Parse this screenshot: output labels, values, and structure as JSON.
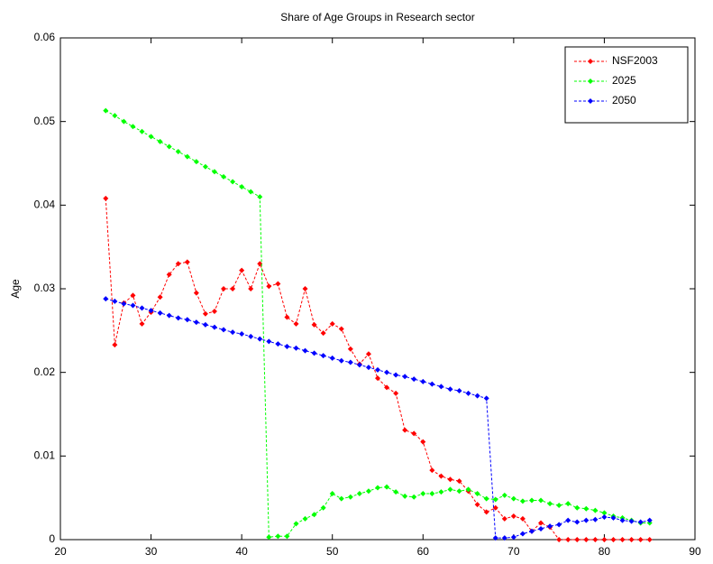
{
  "chart_data": {
    "type": "line",
    "title": "Share of Age Groups in Research sector",
    "ylabel": "Age",
    "x": [
      25,
      26,
      27,
      28,
      29,
      30,
      31,
      32,
      33,
      34,
      35,
      36,
      37,
      38,
      39,
      40,
      41,
      42,
      43,
      44,
      45,
      46,
      47,
      48,
      49,
      50,
      51,
      52,
      53,
      54,
      55,
      56,
      57,
      58,
      59,
      60,
      61,
      62,
      63,
      64,
      65,
      66,
      67,
      68,
      69,
      70,
      71,
      72,
      73,
      74,
      75,
      76,
      77,
      78,
      79,
      80,
      81,
      82,
      83,
      84,
      85
    ],
    "series": [
      {
        "name": "NSF2003",
        "color": "#ff0000",
        "values": [
          0.0408,
          0.0233,
          0.0283,
          0.0292,
          0.0258,
          0.0272,
          0.029,
          0.0317,
          0.033,
          0.0332,
          0.0295,
          0.027,
          0.0273,
          0.03,
          0.03,
          0.0322,
          0.03,
          0.033,
          0.0303,
          0.0306,
          0.0266,
          0.0258,
          0.03,
          0.0257,
          0.0247,
          0.0258,
          0.0252,
          0.0228,
          0.021,
          0.0222,
          0.0193,
          0.0182,
          0.0175,
          0.0131,
          0.0127,
          0.0117,
          0.0083,
          0.0076,
          0.0072,
          0.007,
          0.0058,
          0.0042,
          0.0033,
          0.0038,
          0.0025,
          0.0028,
          0.0025,
          0.001,
          0.002,
          0.0015,
          0,
          0,
          0,
          0,
          0,
          0,
          0,
          0,
          0,
          0,
          0
        ]
      },
      {
        "name": "2025",
        "color": "#00ff00",
        "values": [
          0.0513,
          0.0507,
          0.05,
          0.0494,
          0.0488,
          0.0482,
          0.0476,
          0.047,
          0.0464,
          0.0458,
          0.0452,
          0.0446,
          0.044,
          0.0434,
          0.0428,
          0.0422,
          0.0416,
          0.041,
          0.0003,
          0.0004,
          0.0004,
          0.0019,
          0.0025,
          0.003,
          0.0038,
          0.0055,
          0.0049,
          0.0051,
          0.0055,
          0.0058,
          0.0062,
          0.0063,
          0.0057,
          0.0052,
          0.0051,
          0.0055,
          0.0055,
          0.0057,
          0.006,
          0.0058,
          0.006,
          0.0055,
          0.0049,
          0.0048,
          0.0053,
          0.0049,
          0.0046,
          0.0047,
          0.0047,
          0.0043,
          0.0041,
          0.0043,
          0.0038,
          0.0037,
          0.0035,
          0.0032,
          0.0028,
          0.0026,
          0.0023,
          0.002,
          0.002
        ]
      },
      {
        "name": "2050",
        "color": "#0000ff",
        "values": [
          0.0288,
          0.0285,
          0.0282,
          0.028,
          0.0277,
          0.0274,
          0.0271,
          0.0268,
          0.0265,
          0.0263,
          0.026,
          0.0257,
          0.0254,
          0.0251,
          0.0248,
          0.0246,
          0.0243,
          0.024,
          0.0237,
          0.0234,
          0.0231,
          0.0229,
          0.0226,
          0.0223,
          0.022,
          0.0217,
          0.0214,
          0.0212,
          0.0209,
          0.0206,
          0.0203,
          0.02,
          0.0197,
          0.0195,
          0.0192,
          0.0189,
          0.0186,
          0.0183,
          0.018,
          0.0178,
          0.0175,
          0.0172,
          0.0169,
          0.0002,
          0.0002,
          0.0003,
          0.0007,
          0.001,
          0.0013,
          0.0016,
          0.0018,
          0.0023,
          0.0021,
          0.0023,
          0.0024,
          0.0027,
          0.0026,
          0.0023,
          0.0022,
          0.0021,
          0.0023
        ]
      }
    ],
    "xlim": [
      20,
      90
    ],
    "xticks": [
      20,
      30,
      40,
      50,
      60,
      70,
      80,
      90
    ],
    "ylim": [
      0,
      0.06
    ],
    "yticks": [
      0,
      0.01,
      0.02,
      0.03,
      0.04,
      0.05,
      0.06
    ],
    "legend": "upper right",
    "grid": false
  }
}
